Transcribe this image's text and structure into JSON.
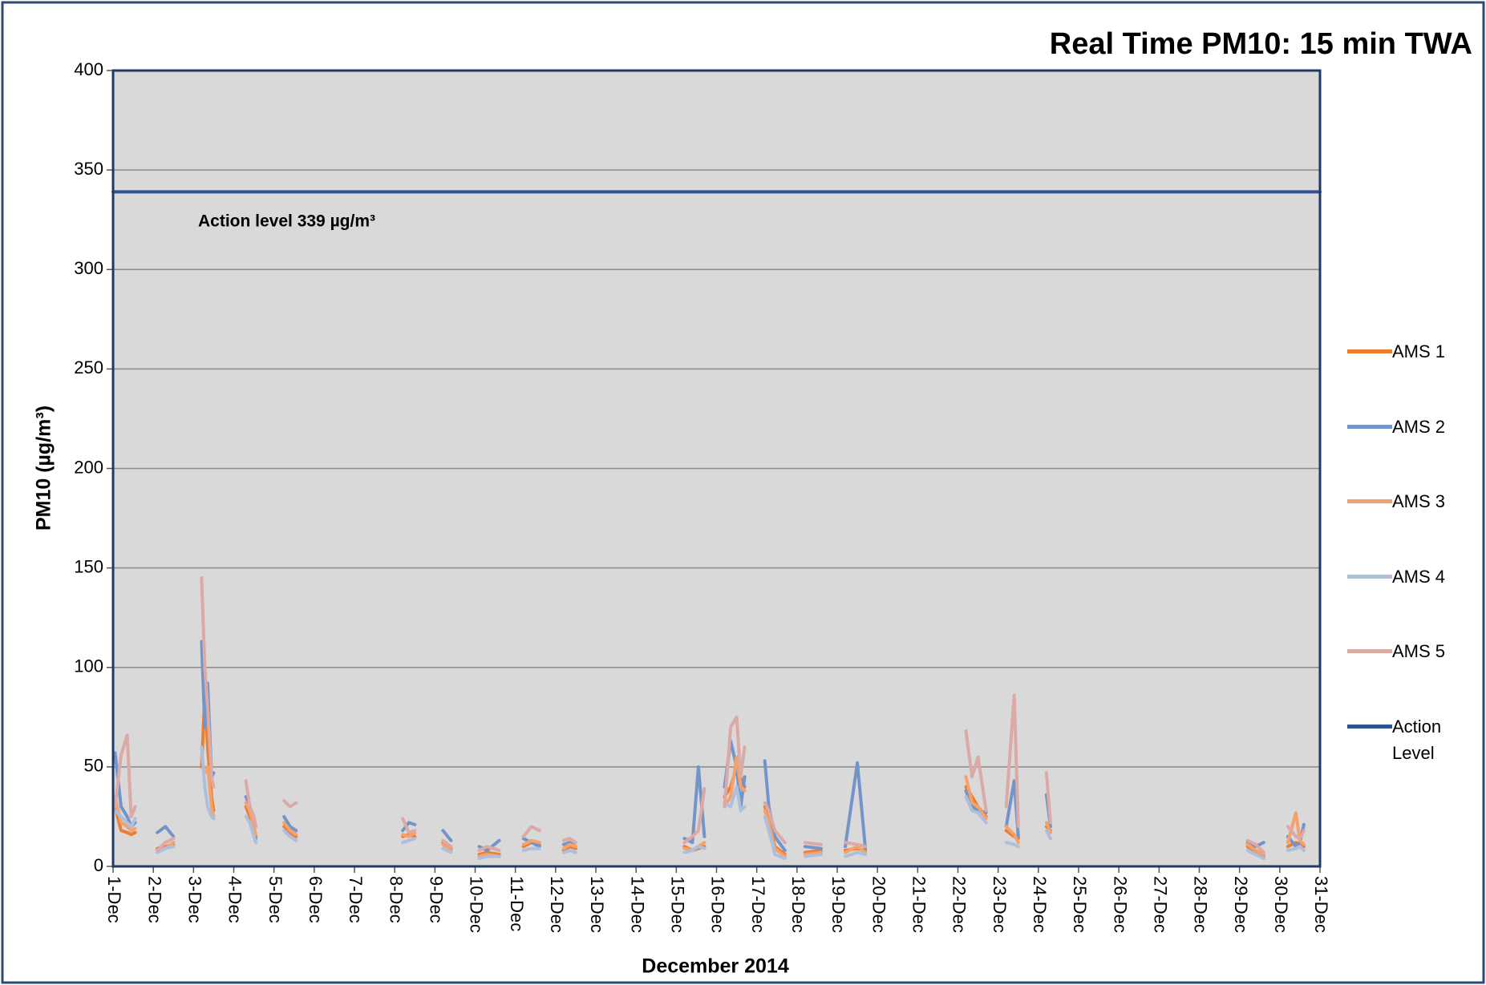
{
  "chart_data": {
    "type": "line",
    "title": "Real Time PM10: 15 min TWA",
    "x_label": "December 2014",
    "y_label": "PM10 (µg/m³)",
    "annotation": "Action level 339 µg/m³",
    "x": [
      1.05,
      1.2,
      1.35,
      1.45,
      1.55,
      1.8,
      2.1,
      2.3,
      2.5,
      2.8,
      3.2,
      3.28,
      3.35,
      3.45,
      3.5,
      3.9,
      4.3,
      4.4,
      4.5,
      4.55,
      4.9,
      5.25,
      5.4,
      5.55,
      7,
      8.2,
      8.35,
      8.5,
      8.8,
      9.2,
      9.4,
      9.8,
      10.1,
      10.3,
      10.6,
      10.9,
      11.2,
      11.4,
      11.6,
      11.9,
      12.2,
      12.35,
      12.5,
      14,
      15.2,
      15.4,
      15.55,
      15.7,
      15.95,
      16.2,
      16.35,
      16.5,
      16.6,
      16.7,
      16.95,
      17.2,
      17.3,
      17.45,
      17.7,
      17.95,
      18.2,
      18.6,
      18.9,
      19.2,
      19.5,
      19.7,
      21,
      22.2,
      22.35,
      22.5,
      22.7,
      22.95,
      23.2,
      23.4,
      23.5,
      23.9,
      24.2,
      24.3,
      27,
      29.2,
      29.4,
      29.6,
      29.9,
      30.2,
      30.4,
      30.5,
      30.6
    ],
    "series": [
      {
        "name": "AMS 1",
        "color": "#ed7d31",
        "values": [
          30,
          18,
          17,
          16,
          17,
          null,
          9,
          10,
          11,
          null,
          50,
          86,
          60,
          35,
          28,
          null,
          30,
          25,
          18,
          15,
          null,
          20,
          17,
          15,
          null,
          15,
          16,
          15,
          null,
          12,
          9,
          null,
          6,
          7,
          6,
          null,
          10,
          12,
          11,
          null,
          8,
          10,
          9,
          null,
          10,
          8,
          9,
          10,
          null,
          35,
          40,
          50,
          45,
          40,
          null,
          30,
          25,
          10,
          6,
          null,
          7,
          8,
          null,
          8,
          9,
          8,
          null,
          40,
          35,
          30,
          25,
          null,
          18,
          15,
          14,
          null,
          20,
          18,
          null,
          10,
          7,
          5,
          null,
          10,
          12,
          11,
          10
        ]
      },
      {
        "name": "AMS 2",
        "color": "#7394c8",
        "values": [
          57,
          30,
          25,
          20,
          22,
          null,
          17,
          20,
          15,
          null,
          113,
          70,
          92,
          45,
          47,
          null,
          35,
          30,
          20,
          14,
          null,
          25,
          20,
          18,
          null,
          18,
          22,
          21,
          null,
          18,
          13,
          null,
          10,
          8,
          13,
          null,
          14,
          12,
          10,
          null,
          11,
          12,
          10,
          null,
          14,
          12,
          50,
          15,
          null,
          40,
          63,
          50,
          30,
          45,
          null,
          53,
          30,
          15,
          8,
          null,
          10,
          9,
          null,
          10,
          52,
          9,
          null,
          38,
          30,
          28,
          27,
          null,
          20,
          43,
          15,
          null,
          36,
          20,
          null,
          12,
          10,
          12,
          null,
          15,
          10,
          12,
          21
        ]
      },
      {
        "name": "AMS 3",
        "color": "#f4a26d",
        "values": [
          35,
          22,
          20,
          18,
          19,
          null,
          8,
          9,
          12,
          null,
          55,
          47,
          50,
          30,
          25,
          null,
          32,
          28,
          20,
          16,
          null,
          22,
          18,
          16,
          null,
          16,
          15,
          17,
          null,
          11,
          8,
          null,
          5,
          6,
          5,
          null,
          11,
          13,
          12,
          null,
          9,
          11,
          10,
          null,
          9,
          8,
          10,
          12,
          null,
          30,
          35,
          55,
          40,
          38,
          null,
          28,
          22,
          9,
          5,
          null,
          6,
          7,
          null,
          7,
          10,
          7,
          null,
          45,
          32,
          30,
          24,
          null,
          20,
          16,
          12,
          null,
          22,
          17,
          null,
          11,
          8,
          6,
          null,
          12,
          27,
          13,
          11
        ]
      },
      {
        "name": "AMS 4",
        "color": "#adbfdd",
        "values": [
          28,
          25,
          22,
          20,
          24,
          null,
          7,
          9,
          10,
          null,
          60,
          40,
          30,
          25,
          24,
          null,
          25,
          22,
          15,
          12,
          null,
          18,
          15,
          13,
          null,
          12,
          13,
          14,
          null,
          9,
          7,
          null,
          4,
          5,
          5,
          null,
          8,
          9,
          9,
          null,
          7,
          8,
          7,
          null,
          7,
          8,
          10,
          9,
          null,
          32,
          30,
          40,
          28,
          30,
          null,
          25,
          18,
          6,
          4,
          null,
          5,
          6,
          null,
          5,
          7,
          6,
          null,
          35,
          28,
          27,
          22,
          null,
          12,
          11,
          10,
          null,
          18,
          14,
          null,
          8,
          6,
          4,
          null,
          8,
          9,
          10,
          8
        ]
      },
      {
        "name": "AMS 5",
        "color": "#dba9a6",
        "values": [
          30,
          56,
          66,
          25,
          30,
          null,
          8,
          12,
          14,
          null,
          145,
          100,
          80,
          45,
          40,
          null,
          43,
          30,
          25,
          20,
          null,
          33,
          30,
          32,
          null,
          24,
          17,
          18,
          null,
          13,
          10,
          null,
          8,
          10,
          8,
          null,
          15,
          20,
          18,
          null,
          13,
          14,
          12,
          null,
          12,
          15,
          18,
          39,
          null,
          30,
          70,
          75,
          45,
          60,
          null,
          32,
          28,
          18,
          12,
          null,
          12,
          11,
          null,
          12,
          11,
          10,
          null,
          68,
          45,
          55,
          28,
          null,
          30,
          86,
          20,
          null,
          47,
          22,
          null,
          13,
          11,
          7,
          null,
          20,
          15,
          14,
          18
        ]
      },
      {
        "name": "Action Level",
        "color": "#2e5590",
        "x": [
          1,
          31
        ],
        "values": [
          339,
          339
        ]
      }
    ],
    "xlim": [
      1,
      31
    ],
    "xticks": [
      {
        "value": 1,
        "label": "1-Dec"
      },
      {
        "value": 2,
        "label": "2-Dec"
      },
      {
        "value": 3,
        "label": "3-Dec"
      },
      {
        "value": 4,
        "label": "4-Dec"
      },
      {
        "value": 5,
        "label": "5-Dec"
      },
      {
        "value": 6,
        "label": "6-Dec"
      },
      {
        "value": 7,
        "label": "7-Dec"
      },
      {
        "value": 8,
        "label": "8-Dec"
      },
      {
        "value": 9,
        "label": "9-Dec"
      },
      {
        "value": 10,
        "label": "10-Dec"
      },
      {
        "value": 11,
        "label": "11-Dec"
      },
      {
        "value": 12,
        "label": "12-Dec"
      },
      {
        "value": 13,
        "label": "13-Dec"
      },
      {
        "value": 14,
        "label": "14-Dec"
      },
      {
        "value": 15,
        "label": "15-Dec"
      },
      {
        "value": 16,
        "label": "16-Dec"
      },
      {
        "value": 17,
        "label": "17-Dec"
      },
      {
        "value": 18,
        "label": "18-Dec"
      },
      {
        "value": 19,
        "label": "19-Dec"
      },
      {
        "value": 20,
        "label": "20-Dec"
      },
      {
        "value": 21,
        "label": "21-Dec"
      },
      {
        "value": 22,
        "label": "22-Dec"
      },
      {
        "value": 23,
        "label": "23-Dec"
      },
      {
        "value": 24,
        "label": "24-Dec"
      },
      {
        "value": 25,
        "label": "25-Dec"
      },
      {
        "value": 26,
        "label": "26-Dec"
      },
      {
        "value": 27,
        "label": "27-Dec"
      },
      {
        "value": 28,
        "label": "28-Dec"
      },
      {
        "value": 29,
        "label": "29-Dec"
      },
      {
        "value": 30,
        "label": "30-Dec"
      },
      {
        "value": 31,
        "label": "31-Dec"
      }
    ],
    "ylim": [
      0,
      400
    ],
    "yticks": [
      0,
      50,
      100,
      150,
      200,
      250,
      300,
      350,
      400
    ],
    "grid": true,
    "legend": "right"
  }
}
